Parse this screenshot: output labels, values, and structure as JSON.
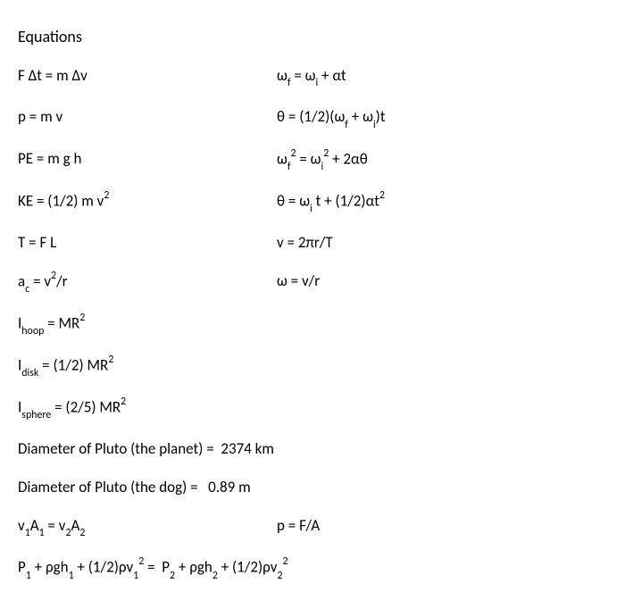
{
  "title": "Equations",
  "rows": [
    {
      "left": "F Δt = m Δv",
      "right": "ω<span class='sub'>f</span> = ω<span class='sub'>i</span> + αt"
    },
    {
      "left": "p = m v",
      "right": "θ = (1/2)(ω<span class='sub'>f</span> + ω<span class='sub'>i</span>)t"
    },
    {
      "left": "PE = m g h",
      "right": "ω<span class='sub'>f</span><span class='sup'>2</span> = ω<span class='sub'>i</span><span class='sup'>2</span> + 2αθ"
    },
    {
      "left": "KE = (1/2) m v<span class='sup'>2</span>",
      "right": "θ = ω<span class='sub'>i</span> t + (1/2)αt<span class='sup'>2</span>"
    },
    {
      "left": "T = F L",
      "right": "v = 2πr/T"
    },
    {
      "left": "a<span class='sub'>c</span> = v<span class='sup'>2</span>/r",
      "right": "ω = v/r"
    },
    {
      "left": "I<span class='sub'>hoop</span> = MR<span class='sup'>2</span>",
      "right": ""
    },
    {
      "left": "I<span class='sub'>disk</span> = (1/2) MR<span class='sup'>2</span>",
      "right": ""
    },
    {
      "left": "I<span class='sub'>sphere</span> = (2/5) MR<span class='sup'>2</span>",
      "right": ""
    }
  ],
  "fullRows": [
    "Diameter of Pluto (the planet) =&nbsp;&nbsp;2374 km",
    "Diameter of Pluto (the dog) =&nbsp;&nbsp;&nbsp;0.89 m"
  ],
  "bottomRows": [
    {
      "left": "v<span class='sub'>1</span>A<span class='sub'>1</span> = v<span class='sub'>2</span>A<span class='sub'>2</span>",
      "right": "p = F/A"
    }
  ],
  "lastRow": "P<span class='sub'>1</span> + ρgh<span class='sub'>1</span> + (1/2)ρv<span class='sub'>1</span><span class='sup'>2</span> =&nbsp;&nbsp;P<span class='sub'>2</span> + ρgh<span class='sub'>2</span> + (1/2)ρv<span class='sub'>2</span><span class='sup'>2</span>"
}
